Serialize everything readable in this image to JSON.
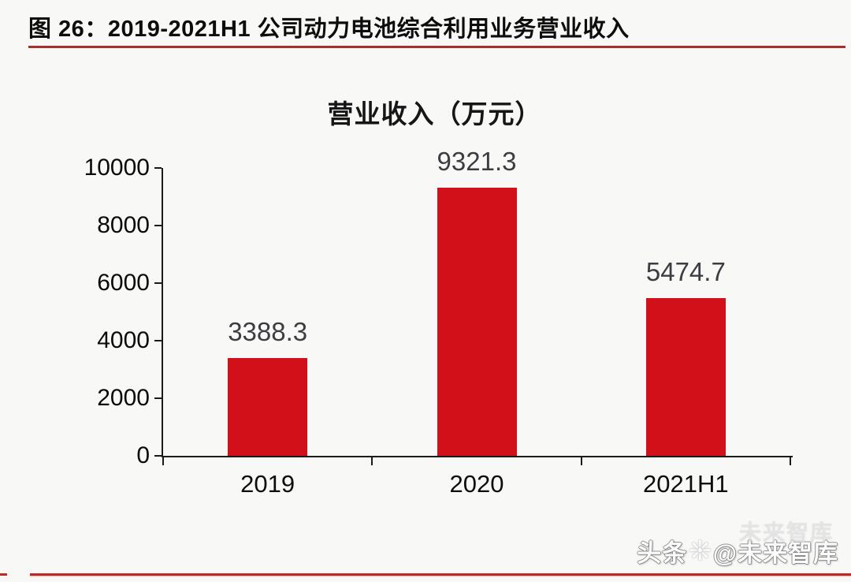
{
  "figure": {
    "caption": "图 26：2019-2021H1 公司动力电池综合利用业务营业收入"
  },
  "chart_data": {
    "type": "bar",
    "title": "营业收入（万元）",
    "categories": [
      "2019",
      "2020",
      "2021H1"
    ],
    "values": [
      3388.3,
      9321.3,
      5474.7
    ],
    "value_labels": [
      "3388.3",
      "9321.3",
      "5474.7"
    ],
    "xlabel": "",
    "ylabel": "",
    "ylim": [
      0,
      10000
    ],
    "yticks": [
      0,
      2000,
      4000,
      6000,
      8000,
      10000
    ],
    "grid": false,
    "legend": "none",
    "bar_color": "#d1101a"
  },
  "watermark": {
    "prefix": "头条",
    "icon": "sparkle-icon",
    "handle": "@未来智库",
    "ghost": "未来智库"
  },
  "colors": {
    "background": "#f8f8f7",
    "caption_underline": "#a82e2c",
    "bottom_rule": "#bb2a26",
    "axis": "#1a1a1a",
    "bar": "#d1101a",
    "value_label_text": "#3c3c43"
  }
}
